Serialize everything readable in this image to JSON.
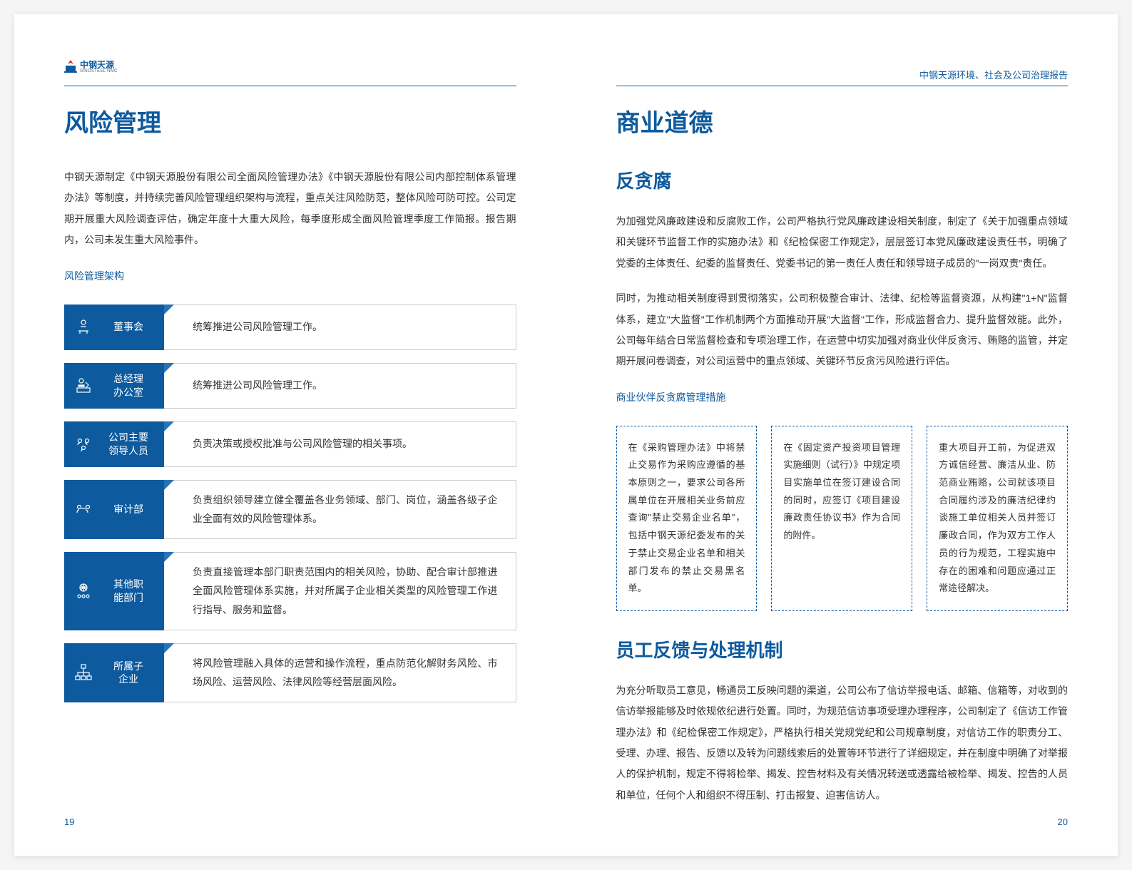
{
  "company_logo": {
    "cn": "中钢天源",
    "en": "SINOSTEEL NMC"
  },
  "header_right": "中钢天源环境、社会及公司治理报告",
  "left": {
    "title": "风险管理",
    "intro": "中钢天源制定《中钢天源股份有限公司全面风险管理办法》《中钢天源股份有限公司内部控制体系管理办法》等制度，并持续完善风险管理组织架构与流程，重点关注风险防范，整体风险可防可控。公司定期开展重大风险调查评估，确定年度十大重大风险，每季度形成全面风险管理季度工作简报。报告期内，公司未发生重大风险事件。",
    "subtitle": "风险管理架构",
    "rows": [
      {
        "name": "董事会",
        "desc": "统筹推进公司风险管理工作。"
      },
      {
        "name": "总经理办公室",
        "desc": "统筹推进公司风险管理工作。"
      },
      {
        "name": "公司主要领导人员",
        "desc": "负责决策或授权批准与公司风险管理的相关事项。"
      },
      {
        "name": "审计部",
        "desc": "负责组织领导建立健全覆盖各业务领域、部门、岗位，涵盖各级子企业全面有效的风险管理体系。"
      },
      {
        "name": "其他职能部门",
        "desc": "负责直接管理本部门职责范围内的相关风险，协助、配合审计部推进全面风险管理体系实施，并对所属子企业相关类型的风险管理工作进行指导、服务和监督。"
      },
      {
        "name": "所属子企业",
        "desc": "将风险管理融入具体的运营和操作流程，重点防范化解财务风险、市场风险、运营风险、法律风险等经营层面风险。"
      }
    ],
    "page_num": "19"
  },
  "right": {
    "title": "商业道德",
    "section1": {
      "heading": "反贪腐",
      "p1": "为加强党风廉政建设和反腐败工作，公司严格执行党风廉政建设相关制度，制定了《关于加强重点领域和关键环节监督工作的实施办法》和《纪检保密工作规定》，层层签订本党风廉政建设责任书，明确了党委的主体责任、纪委的监督责任、党委书记的第一责任人责任和领导班子成员的\"一岗双责\"责任。",
      "p2": "同时，为推动相关制度得到贯彻落实，公司积极整合审计、法律、纪检等监督资源，从构建\"1+N\"监督体系，建立\"大监督\"工作机制两个方面推动开展\"大监督\"工作，形成监督合力、提升监督效能。此外，公司每年结合日常监督检查和专项治理工作，在运营中切实加强对商业伙伴反贪污、贿赂的监管，并定期开展问卷调查，对公司运营中的重点领域、关键环节反贪污风险进行评估。",
      "subtitle": "商业伙伴反贪腐管理措施",
      "measures": [
        "在《采购管理办法》中将禁止交易作为采购应遵循的基本原则之一，要求公司各所属单位在开展相关业务前应查询\"禁止交易企业名单\"，包括中钢天源纪委发布的关于禁止交易企业名单和相关部门发布的禁止交易黑名单。",
        "在《固定资产投资项目管理实施细则（试行）》中规定项目实施单位在签订建设合同的同时，应签订《项目建设廉政责任协议书》作为合同的附件。",
        "重大项目开工前，为促进双方诚信经营、廉洁从业、防范商业贿赂，公司就该项目合同履约涉及的廉洁纪律约谈施工单位相关人员并签订廉政合同，作为双方工作人员的行为规范，工程实施中存在的困难和问题应通过正常途径解决。"
      ]
    },
    "section2": {
      "heading": "员工反馈与处理机制",
      "p1": "为充分听取员工意见，畅通员工反映问题的渠道，公司公布了信访举报电话、邮箱、信箱等，对收到的信访举报能够及时依规依纪进行处置。同时，为规范信访事项受理办理程序，公司制定了《信访工作管理办法》和《纪检保密工作规定》，严格执行相关党规党纪和公司规章制度，对信访工作的职责分工、受理、办理、报告、反馈以及转为问题线索后的处置等环节进行了详细规定，并在制度中明确了对举报人的保护机制，规定不得将检举、揭发、控告材料及有关情况转送或透露给被检举、揭发、控告的人员和单位，任何个人和组织不得压制、打击报复、迫害信访人。"
    },
    "page_num": "20"
  }
}
